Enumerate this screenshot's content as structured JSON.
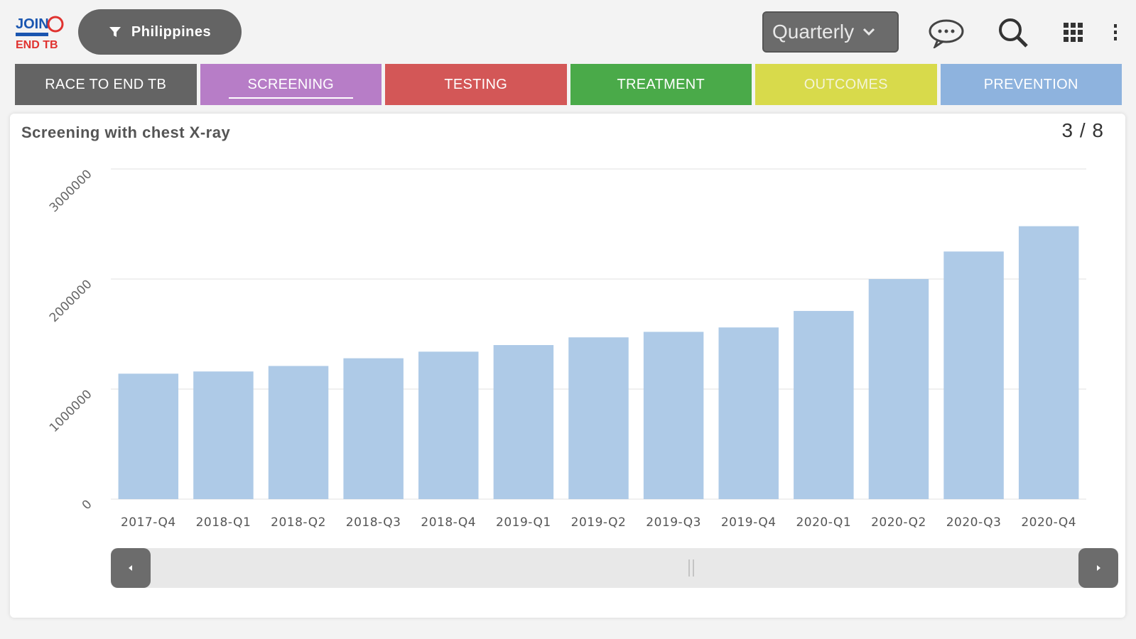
{
  "header": {
    "logo_alt": "JOIN THE RACE END TB",
    "filter_label": "Philippines",
    "period_select": "Quarterly"
  },
  "tabs": [
    {
      "label": "RACE TO END TB",
      "color": "#646464",
      "active": false
    },
    {
      "label": "SCREENING",
      "color": "#b77dc7",
      "active": true
    },
    {
      "label": "TESTING",
      "color": "#d35757",
      "active": false
    },
    {
      "label": "TREATMENT",
      "color": "#4aaa49",
      "active": false
    },
    {
      "label": "OUTCOMES",
      "color": "#d8da4b",
      "active": false
    },
    {
      "label": "PREVENTION",
      "color": "#8eb3de",
      "active": false
    }
  ],
  "card": {
    "title": "Screening with chest X-ray",
    "page_counter": "3 / 8"
  },
  "chart_data": {
    "type": "bar",
    "title": "Screening with chest X-ray",
    "categories": [
      "2017-Q4",
      "2018-Q1",
      "2018-Q2",
      "2018-Q3",
      "2018-Q4",
      "2019-Q1",
      "2019-Q2",
      "2019-Q3",
      "2019-Q4",
      "2020-Q1",
      "2020-Q2",
      "2020-Q3",
      "2020-Q4"
    ],
    "values": [
      1140000,
      1160000,
      1210000,
      1280000,
      1340000,
      1400000,
      1470000,
      1520000,
      1560000,
      1710000,
      2000000,
      2250000,
      2480000
    ],
    "ylim": [
      0,
      3000000
    ],
    "yticks": [
      "0",
      "1000000",
      "2000000",
      "3000000"
    ],
    "color": "#aecae7",
    "grid": true
  }
}
